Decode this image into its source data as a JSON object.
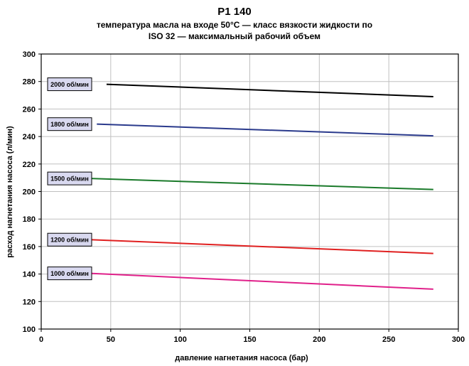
{
  "chart_data": {
    "type": "line",
    "title": "P1 140",
    "subtitle_line1": "температура масла на входе 50°C — класс вязкости жидкости по",
    "subtitle_line2": "ISO 32 — максимальный рабочий объем",
    "xlabel": "давление нагнетания насоса (бар)",
    "ylabel": "расход нагнетания насоса (л/мин)",
    "xlim": [
      0,
      300
    ],
    "ylim": [
      100,
      300
    ],
    "xticks": [
      0,
      50,
      100,
      150,
      200,
      250,
      300
    ],
    "yticks": [
      100,
      120,
      140,
      160,
      180,
      200,
      220,
      240,
      260,
      280,
      300
    ],
    "grid": true,
    "series": [
      {
        "name": "2000 об/мин",
        "color": "#000000",
        "x": [
          47,
          282
        ],
        "y": [
          278,
          269
        ]
      },
      {
        "name": "1800 об/мин",
        "color": "#2a3a8c",
        "x": [
          40,
          282
        ],
        "y": [
          249,
          240.5
        ]
      },
      {
        "name": "1500 об/мин",
        "color": "#1a7a2a",
        "x": [
          35,
          282
        ],
        "y": [
          209.5,
          201.5
        ]
      },
      {
        "name": "1200 об/мин",
        "color": "#e02020",
        "x": [
          35,
          282
        ],
        "y": [
          165,
          155
        ]
      },
      {
        "name": "1000 об/мин",
        "color": "#e0208a",
        "x": [
          35,
          282
        ],
        "y": [
          140.5,
          129
        ]
      }
    ]
  }
}
